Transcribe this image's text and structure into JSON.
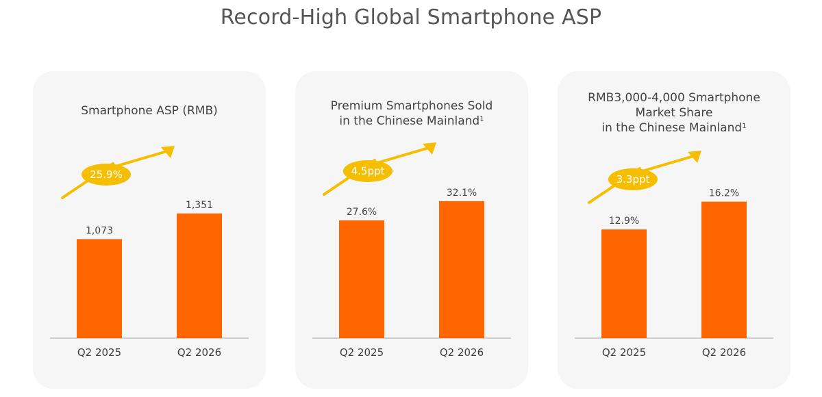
{
  "page_title": "Record-High Global Smartphone ASP",
  "colors": {
    "bar": "#ff6600",
    "badge": "#f5be00",
    "arrow": "#f5be00",
    "card_bg": "#f6f6f6",
    "baseline": "#b5b5b5"
  },
  "chart_data": [
    {
      "type": "bar",
      "title_lines": [
        "Smartphone ASP (RMB)"
      ],
      "footnote": "",
      "categories": [
        "Q2 2025",
        "Q2 2026"
      ],
      "values": [
        1073,
        1351
      ],
      "value_labels": [
        "1,073",
        "1,351"
      ],
      "change_label": "25.9%",
      "ylim": [
        0,
        1780
      ]
    },
    {
      "type": "bar",
      "title_lines": [
        "Premium Smartphones Sold",
        "in the Chinese Mainland"
      ],
      "footnote": "1",
      "categories": [
        "Q2 2025",
        "Q2 2026"
      ],
      "values": [
        27.6,
        32.1
      ],
      "value_labels": [
        "27.6%",
        "32.1%"
      ],
      "change_label": "4.5ppt",
      "ylim": [
        0,
        38.5
      ]
    },
    {
      "type": "bar",
      "title_lines": [
        "RMB3,000-4,000 Smartphone",
        "Market Share",
        "in the Chinese Mainland"
      ],
      "footnote": "1",
      "categories": [
        "Q2 2025",
        "Q2 2026"
      ],
      "values": [
        12.9,
        16.2
      ],
      "value_labels": [
        "12.9%",
        "16.2%"
      ],
      "change_label": "3.3ppt",
      "ylim": [
        0,
        19.5
      ]
    }
  ]
}
